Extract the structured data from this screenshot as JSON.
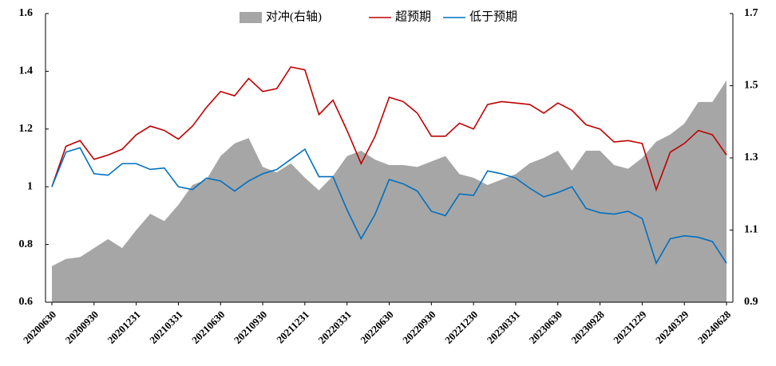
{
  "chart_data": {
    "type": "line",
    "categories": [
      "20200630",
      null,
      null,
      "20200930",
      null,
      null,
      "20201231",
      null,
      null,
      "20210331",
      null,
      null,
      "20210630",
      null,
      null,
      "20210930",
      null,
      null,
      "20211231",
      null,
      null,
      "20220331",
      null,
      null,
      "20220630",
      null,
      null,
      "20220930",
      null,
      null,
      "20221230",
      null,
      null,
      "20230331",
      null,
      null,
      "20230630",
      null,
      null,
      "20230928",
      null,
      null,
      "20231229",
      null,
      null,
      "20240329",
      null,
      null,
      "20240628"
    ],
    "series": [
      {
        "name": "对冲(右轴)",
        "color": "#a6a6a6",
        "kind": "area",
        "axis": "y2",
        "values": [
          1.0,
          1.02,
          1.025,
          1.05,
          1.075,
          1.05,
          1.1,
          1.145,
          1.125,
          1.17,
          1.225,
          1.24,
          1.305,
          1.34,
          1.355,
          1.275,
          1.26,
          1.285,
          1.245,
          1.21,
          1.25,
          1.305,
          1.32,
          1.295,
          1.28,
          1.28,
          1.275,
          1.29,
          1.305,
          1.255,
          1.245,
          1.225,
          1.24,
          1.255,
          1.285,
          1.3,
          1.32,
          1.265,
          1.32,
          1.32,
          1.28,
          1.27,
          1.3,
          1.345,
          1.365,
          1.395,
          1.455,
          1.455,
          1.515
        ]
      },
      {
        "name": "超预期",
        "color": "#c00000",
        "kind": "line",
        "values": [
          1.0,
          1.14,
          1.16,
          1.095,
          1.11,
          1.13,
          1.18,
          1.21,
          1.195,
          1.165,
          1.21,
          1.275,
          1.33,
          1.315,
          1.375,
          1.33,
          1.34,
          1.415,
          1.405,
          1.25,
          1.3,
          1.195,
          1.08,
          1.175,
          1.31,
          1.295,
          1.255,
          1.175,
          1.175,
          1.22,
          1.2,
          1.285,
          1.295,
          1.29,
          1.285,
          1.255,
          1.29,
          1.265,
          1.215,
          1.2,
          1.155,
          1.16,
          1.15,
          0.99,
          1.12,
          1.15,
          1.195,
          1.18,
          1.11
        ]
      },
      {
        "name": "低于预期",
        "color": "#0070c0",
        "kind": "line",
        "values": [
          1.0,
          1.12,
          1.135,
          1.045,
          1.04,
          1.08,
          1.08,
          1.06,
          1.065,
          1.0,
          0.99,
          1.03,
          1.02,
          0.985,
          1.02,
          1.045,
          1.06,
          1.095,
          1.13,
          1.035,
          1.035,
          0.92,
          0.82,
          0.905,
          1.025,
          1.01,
          0.985,
          0.915,
          0.9,
          0.975,
          0.97,
          1.055,
          1.045,
          1.03,
          0.995,
          0.965,
          0.98,
          1.0,
          0.925,
          0.91,
          0.905,
          0.915,
          0.89,
          0.735,
          0.82,
          0.83,
          0.825,
          0.81,
          0.735
        ]
      }
    ],
    "ylim": [
      0.6,
      1.6
    ],
    "yticks": [
      0.6,
      0.8,
      1,
      1.2,
      1.4,
      1.6
    ],
    "y2lim": [
      0.9,
      1.7
    ],
    "y2ticks": [
      0.9,
      1.1,
      1.3,
      1.5,
      1.7
    ],
    "grid": false
  }
}
